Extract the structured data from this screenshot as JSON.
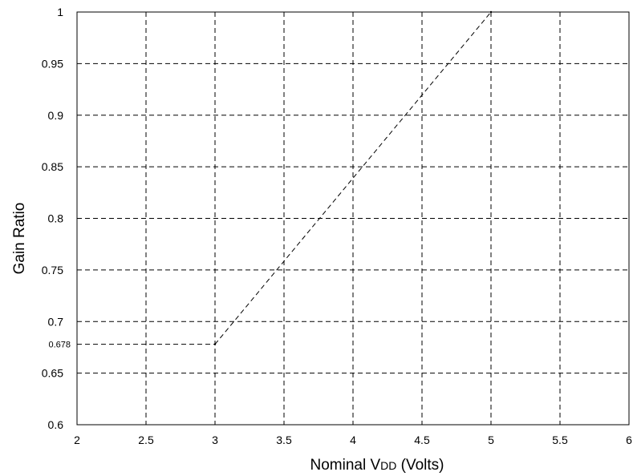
{
  "chart_data": {
    "type": "line",
    "title": "",
    "xlabel": "Nominal V",
    "xlabel_subscript": "DD",
    "xlabel_suffix": " (Volts)",
    "ylabel": "Gain  Ratio",
    "xlim": [
      2,
      6
    ],
    "ylim": [
      0.6,
      1
    ],
    "x_ticks": [
      2,
      2.5,
      3,
      3.5,
      4,
      4.5,
      5,
      5.5,
      6
    ],
    "y_ticks": [
      0.6,
      0.65,
      0.7,
      0.75,
      0.8,
      0.85,
      0.9,
      0.95,
      1
    ],
    "x_tick_labels": [
      "2",
      "2.5",
      "3",
      "3.5",
      "4",
      "4.5",
      "5",
      "5.5",
      "6"
    ],
    "y_tick_labels": [
      "0.6",
      "0.65",
      "0.7",
      "0.75",
      "0.8",
      "0.85",
      "0.9",
      "0.95",
      "1"
    ],
    "grid": true,
    "grid_style": "dashed",
    "series": [
      {
        "x": [
          3,
          5
        ],
        "y": [
          0.678,
          1.0
        ],
        "style": "dashed",
        "color": "#000000"
      }
    ],
    "annotations": [
      {
        "type": "hline",
        "from_x": 2,
        "to_x": 3,
        "y": 0.678,
        "label": "0.678",
        "style": "dashed"
      }
    ]
  }
}
